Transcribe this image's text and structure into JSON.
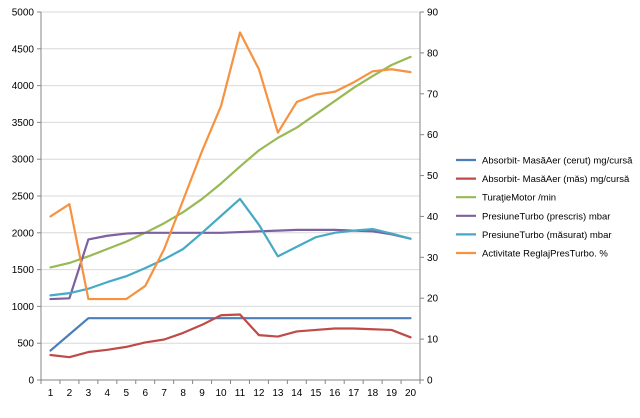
{
  "chart_data": {
    "type": "line",
    "title": "",
    "xlabel": "",
    "ylabel": "",
    "ylabel_right": "",
    "x": [
      1,
      2,
      3,
      4,
      5,
      6,
      7,
      8,
      9,
      10,
      11,
      12,
      13,
      14,
      15,
      16,
      17,
      18,
      19,
      20
    ],
    "ylim": [
      0,
      5000
    ],
    "yticks": [
      0,
      500,
      1000,
      1500,
      2000,
      2500,
      3000,
      3500,
      4000,
      4500,
      5000
    ],
    "ylim_right": [
      0,
      90
    ],
    "yticks_right": [
      0,
      10,
      20,
      30,
      40,
      50,
      60,
      70,
      80,
      90
    ],
    "grid": "horizontal",
    "legend_position": "right",
    "series": [
      {
        "name": "Absorbit- MasăAer (cerut) mg/cursă",
        "color": "#4a7ebb",
        "axis": "left",
        "values": [
          400,
          620,
          840,
          840,
          840,
          840,
          840,
          840,
          840,
          840,
          840,
          840,
          840,
          840,
          840,
          840,
          840,
          840,
          840,
          840
        ]
      },
      {
        "name": "Absorbit- MasăAer (măs) mg/cursă",
        "color": "#be4b48",
        "axis": "left",
        "values": [
          340,
          310,
          380,
          410,
          450,
          510,
          550,
          640,
          750,
          880,
          890,
          610,
          590,
          660,
          680,
          700,
          700,
          690,
          680,
          580
        ]
      },
      {
        "name": "TuraţieMotor /min",
        "color": "#98b954",
        "axis": "left",
        "values": [
          1530,
          1590,
          1680,
          1780,
          1880,
          2000,
          2130,
          2280,
          2460,
          2670,
          2900,
          3120,
          3290,
          3430,
          3610,
          3790,
          3970,
          4130,
          4280,
          4390
        ]
      },
      {
        "name": "PresiuneTurbo (prescris) mbar",
        "color": "#7d60a0",
        "axis": "left",
        "values": [
          1100,
          1110,
          1910,
          1960,
          1990,
          2000,
          2000,
          2000,
          2000,
          2000,
          2010,
          2020,
          2030,
          2040,
          2040,
          2040,
          2030,
          2020,
          1980,
          1920
        ]
      },
      {
        "name": "PresiuneTurbo (măsurat) mbar",
        "color": "#46aac5",
        "axis": "left",
        "values": [
          1150,
          1180,
          1240,
          1330,
          1410,
          1520,
          1640,
          1780,
          2000,
          2230,
          2460,
          2110,
          1680,
          1810,
          1940,
          2000,
          2030,
          2050,
          1990,
          1920
        ]
      },
      {
        "name": "Activitate ReglajPresTurbo. %",
        "color": "#f69240",
        "axis": "right",
        "values": [
          40,
          43,
          19.8,
          19.8,
          19.8,
          23,
          32,
          44,
          56,
          67,
          85,
          76,
          60.5,
          68,
          69.8,
          70.5,
          72.8,
          75.5,
          76,
          75.3
        ]
      }
    ]
  }
}
